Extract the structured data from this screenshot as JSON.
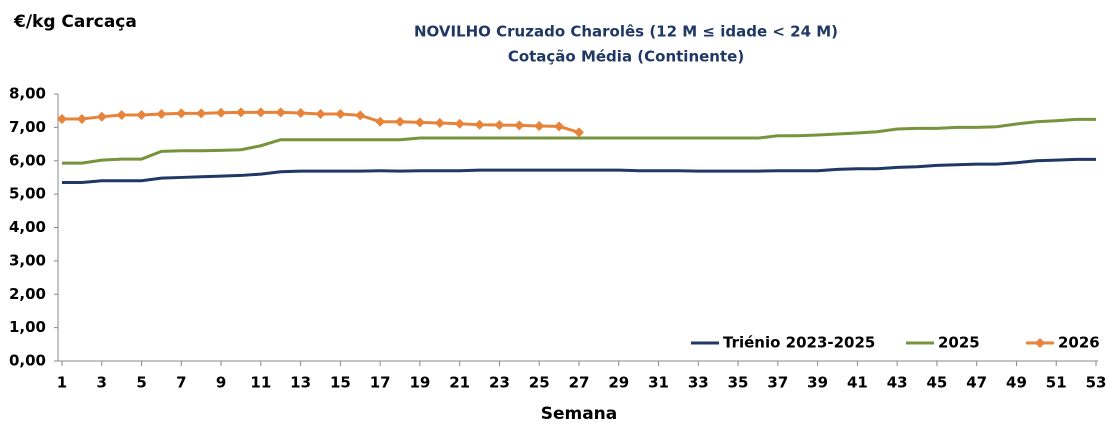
{
  "chart_data": {
    "type": "line",
    "title": "NOVILHO Cruzado Charolês  (12 M ≤ idade < 24 M)",
    "subtitle": "Cotação Média (Continente)",
    "y_label": "€/kg Carcaça",
    "x_label": "Semana",
    "x": [
      1,
      2,
      3,
      4,
      5,
      6,
      7,
      8,
      9,
      10,
      11,
      12,
      13,
      14,
      15,
      16,
      17,
      18,
      19,
      20,
      21,
      22,
      23,
      24,
      25,
      26,
      27,
      28,
      29,
      30,
      31,
      32,
      33,
      34,
      35,
      36,
      37,
      38,
      39,
      40,
      41,
      42,
      43,
      44,
      45,
      46,
      47,
      48,
      49,
      50,
      51,
      52,
      53
    ],
    "xlim": [
      1,
      53
    ],
    "xticks": [
      1,
      3,
      5,
      7,
      9,
      11,
      13,
      15,
      17,
      19,
      21,
      23,
      25,
      27,
      29,
      31,
      33,
      35,
      37,
      39,
      41,
      43,
      45,
      47,
      49,
      51,
      53
    ],
    "ylim": [
      0,
      8
    ],
    "yticks": [
      {
        "value": 0,
        "label": "0,00"
      },
      {
        "value": 1,
        "label": "1,00"
      },
      {
        "value": 2,
        "label": "2,00"
      },
      {
        "value": 3,
        "label": "3,00"
      },
      {
        "value": 4,
        "label": "4,00"
      },
      {
        "value": 5,
        "label": "5,00"
      },
      {
        "value": 6,
        "label": "6,00"
      },
      {
        "value": 7,
        "label": "7,00"
      },
      {
        "value": 8,
        "label": "8,00"
      }
    ],
    "legend": "bottom-right",
    "series": [
      {
        "name": "Triénio 2023-2025",
        "color": "#1f3864",
        "values": [
          5.35,
          5.35,
          5.4,
          5.4,
          5.4,
          5.48,
          5.5,
          5.52,
          5.54,
          5.56,
          5.6,
          5.67,
          5.69,
          5.69,
          5.69,
          5.69,
          5.7,
          5.69,
          5.7,
          5.7,
          5.7,
          5.72,
          5.72,
          5.72,
          5.72,
          5.72,
          5.72,
          5.72,
          5.72,
          5.7,
          5.7,
          5.7,
          5.69,
          5.69,
          5.69,
          5.69,
          5.7,
          5.7,
          5.7,
          5.74,
          5.76,
          5.76,
          5.8,
          5.82,
          5.86,
          5.88,
          5.9,
          5.9,
          5.94,
          6.0,
          6.02,
          6.04,
          6.04
        ]
      },
      {
        "name": "2025",
        "color": "#77933c",
        "values": [
          5.93,
          5.93,
          6.02,
          6.05,
          6.05,
          6.28,
          6.3,
          6.3,
          6.31,
          6.33,
          6.45,
          6.63,
          6.63,
          6.63,
          6.63,
          6.63,
          6.63,
          6.63,
          6.68,
          6.68,
          6.68,
          6.68,
          6.68,
          6.68,
          6.68,
          6.68,
          6.68,
          6.68,
          6.68,
          6.68,
          6.68,
          6.68,
          6.68,
          6.68,
          6.68,
          6.68,
          6.75,
          6.75,
          6.77,
          6.8,
          6.83,
          6.87,
          6.95,
          6.97,
          6.97,
          7.0,
          7.0,
          7.02,
          7.1,
          7.17,
          7.2,
          7.24,
          7.24
        ]
      },
      {
        "name": "2026",
        "color": "#e8843a",
        "marker": "diamond",
        "values": [
          7.25,
          7.25,
          7.32,
          7.37,
          7.37,
          7.4,
          7.42,
          7.42,
          7.44,
          7.45,
          7.45,
          7.45,
          7.43,
          7.4,
          7.4,
          7.36,
          7.17,
          7.17,
          7.15,
          7.13,
          7.11,
          7.08,
          7.07,
          7.06,
          7.04,
          7.03,
          6.85,
          null,
          null,
          null,
          null,
          null,
          null,
          null,
          null,
          null,
          null,
          null,
          null,
          null,
          null,
          null,
          null,
          null,
          null,
          null,
          null,
          null,
          null,
          null,
          null,
          null,
          null
        ]
      }
    ]
  }
}
